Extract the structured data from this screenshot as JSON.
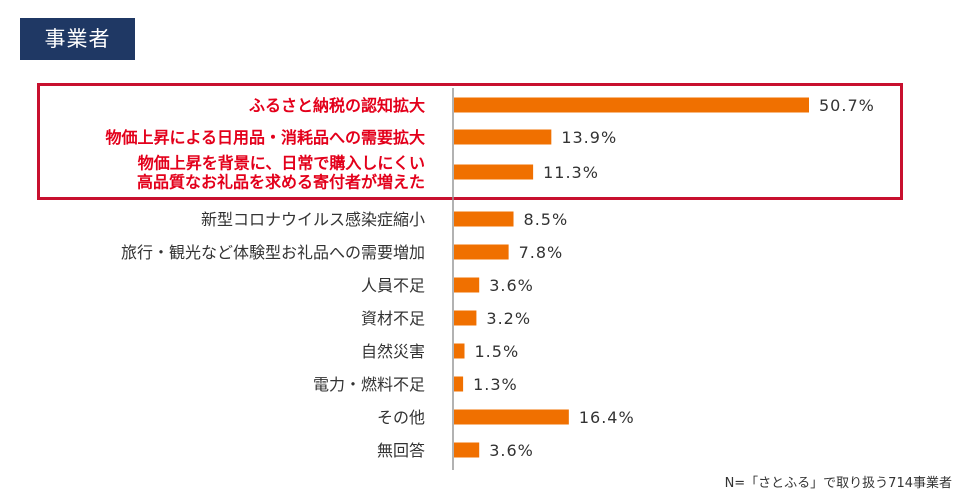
{
  "header": {
    "badge_label": "事業者"
  },
  "footnote": "N=「さとふる」で取り扱う714事業者",
  "colors": {
    "bar": "#f07000",
    "highlight": "#e3001b",
    "normal_text": "#333333",
    "badge_bg": "#1f3864"
  },
  "chart_data": {
    "type": "bar",
    "orientation": "horizontal",
    "categories": [
      [
        "ふるさと納税の認知拡大"
      ],
      [
        "物価上昇による日用品・消耗品への需要拡大"
      ],
      [
        "物価上昇を背景に、日常で購入しにくい",
        "高品質なお礼品を求める寄付者が増えた"
      ],
      [
        "新型コロナウイルス感染症縮小"
      ],
      [
        "旅行・観光など体験型お礼品への需要増加"
      ],
      [
        "人員不足"
      ],
      [
        "資材不足"
      ],
      [
        "自然災害"
      ],
      [
        "電力・燃料不足"
      ],
      [
        "その他"
      ],
      [
        "無回答"
      ]
    ],
    "values": [
      50.7,
      13.9,
      11.3,
      8.5,
      7.8,
      3.6,
      3.2,
      1.5,
      1.3,
      16.4,
      3.6
    ],
    "value_labels": [
      "50.7%",
      "13.9%",
      "11.3%",
      "8.5%",
      "7.8%",
      "3.6%",
      "3.2%",
      "1.5%",
      "1.3%",
      "16.4%",
      "3.6%"
    ],
    "highlighted": [
      true,
      true,
      true,
      false,
      false,
      false,
      false,
      false,
      false,
      false,
      false
    ],
    "unit": "%",
    "xlim": [
      0,
      55
    ],
    "grid": false
  }
}
